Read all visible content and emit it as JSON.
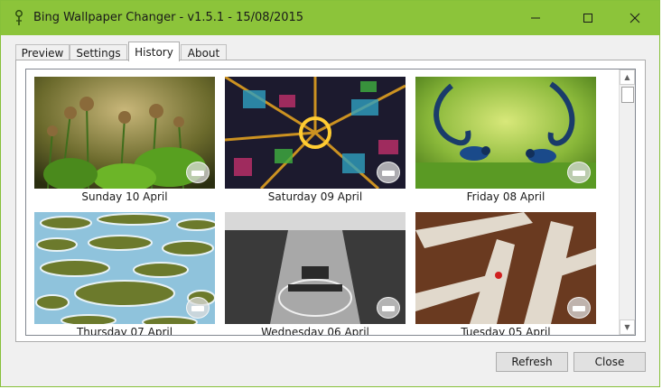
{
  "window": {
    "title": "Bing Wallpaper Changer - v1.5.1 - 15/08/2015",
    "accent_color": "#8cc43a",
    "controls": [
      "minimize-icon",
      "maximize-icon",
      "close-icon"
    ]
  },
  "tabs": [
    {
      "label": "Preview",
      "active": false
    },
    {
      "label": "Settings",
      "active": false
    },
    {
      "label": "History",
      "active": true
    },
    {
      "label": "About",
      "active": false
    }
  ],
  "history": [
    {
      "caption": "Sunday 10 April",
      "image": "fiddlehead-ferns-photo"
    },
    {
      "caption": "Saturday 09 April",
      "image": "city-aerial-night-photo"
    },
    {
      "caption": "Friday 08 April",
      "image": "blue-birds-photo"
    },
    {
      "caption": "Thursday 07 April",
      "image": "spotted-lake-photo"
    },
    {
      "caption": "Wednesday 06 April",
      "image": "olympic-stadium-bw-photo"
    },
    {
      "caption": "Tuesday 05 April",
      "image": "crystal-cave-photo"
    }
  ],
  "buttons": {
    "refresh": "Refresh",
    "close": "Close"
  }
}
